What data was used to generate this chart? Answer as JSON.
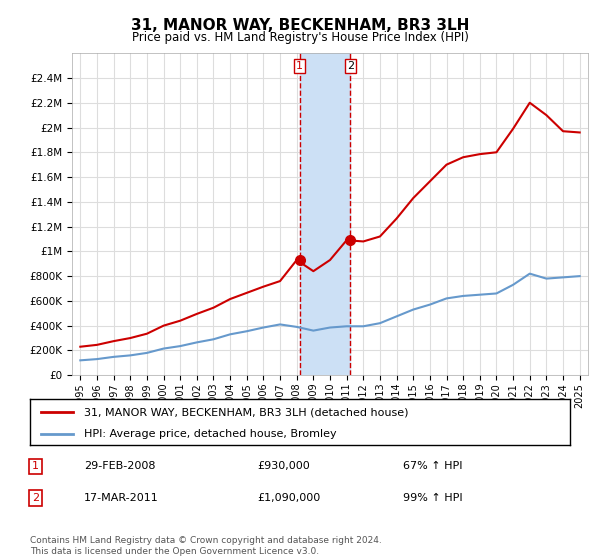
{
  "title": "31, MANOR WAY, BECKENHAM, BR3 3LH",
  "subtitle": "Price paid vs. HM Land Registry's House Price Index (HPI)",
  "legend_line1": "31, MANOR WAY, BECKENHAM, BR3 3LH (detached house)",
  "legend_line2": "HPI: Average price, detached house, Bromley",
  "transaction1_date": "29-FEB-2008",
  "transaction1_price": "£930,000",
  "transaction1_hpi": "67% ↑ HPI",
  "transaction2_date": "17-MAR-2011",
  "transaction2_price": "£1,090,000",
  "transaction2_hpi": "99% ↑ HPI",
  "footer": "Contains HM Land Registry data © Crown copyright and database right 2024.\nThis data is licensed under the Open Government Licence v3.0.",
  "red_color": "#cc0000",
  "blue_color": "#6699cc",
  "shade_color": "#cce0f5",
  "ylim": [
    0,
    2600000
  ],
  "yticks": [
    0,
    200000,
    400000,
    600000,
    800000,
    1000000,
    1200000,
    1400000,
    1600000,
    1800000,
    2000000,
    2200000,
    2400000
  ],
  "hpi_x": [
    1995,
    1996,
    1997,
    1998,
    1999,
    2000,
    2001,
    2002,
    2003,
    2004,
    2005,
    2006,
    2007,
    2008,
    2009,
    2010,
    2011,
    2012,
    2013,
    2014,
    2015,
    2016,
    2017,
    2018,
    2019,
    2020,
    2021,
    2022,
    2023,
    2024,
    2025
  ],
  "hpi_y": [
    120000,
    130000,
    148000,
    160000,
    180000,
    215000,
    235000,
    265000,
    290000,
    330000,
    355000,
    385000,
    410000,
    390000,
    360000,
    385000,
    395000,
    395000,
    420000,
    475000,
    530000,
    570000,
    620000,
    640000,
    650000,
    660000,
    730000,
    820000,
    780000,
    790000,
    800000
  ],
  "red_x": [
    1995,
    1996,
    1997,
    1998,
    1999,
    2000,
    2001,
    2002,
    2003,
    2004,
    2005,
    2006,
    2007,
    2008,
    2009,
    2010,
    2011,
    2012,
    2013,
    2014,
    2015,
    2016,
    2017,
    2018,
    2019,
    2020,
    2021,
    2022,
    2023,
    2024,
    2025
  ],
  "red_y": [
    230000,
    245000,
    275000,
    300000,
    335000,
    400000,
    440000,
    495000,
    545000,
    615000,
    665000,
    715000,
    760000,
    930000,
    840000,
    930000,
    1090000,
    1080000,
    1120000,
    1265000,
    1430000,
    1565000,
    1700000,
    1760000,
    1785000,
    1800000,
    1990000,
    2200000,
    2100000,
    1970000,
    1960000
  ],
  "transaction1_x": 2008.17,
  "transaction1_y": 930000,
  "transaction2_x": 2011.22,
  "transaction2_y": 1090000,
  "shade_x1": 2008.17,
  "shade_x2": 2011.22,
  "xlim_min": 1994.5,
  "xlim_max": 2025.5
}
